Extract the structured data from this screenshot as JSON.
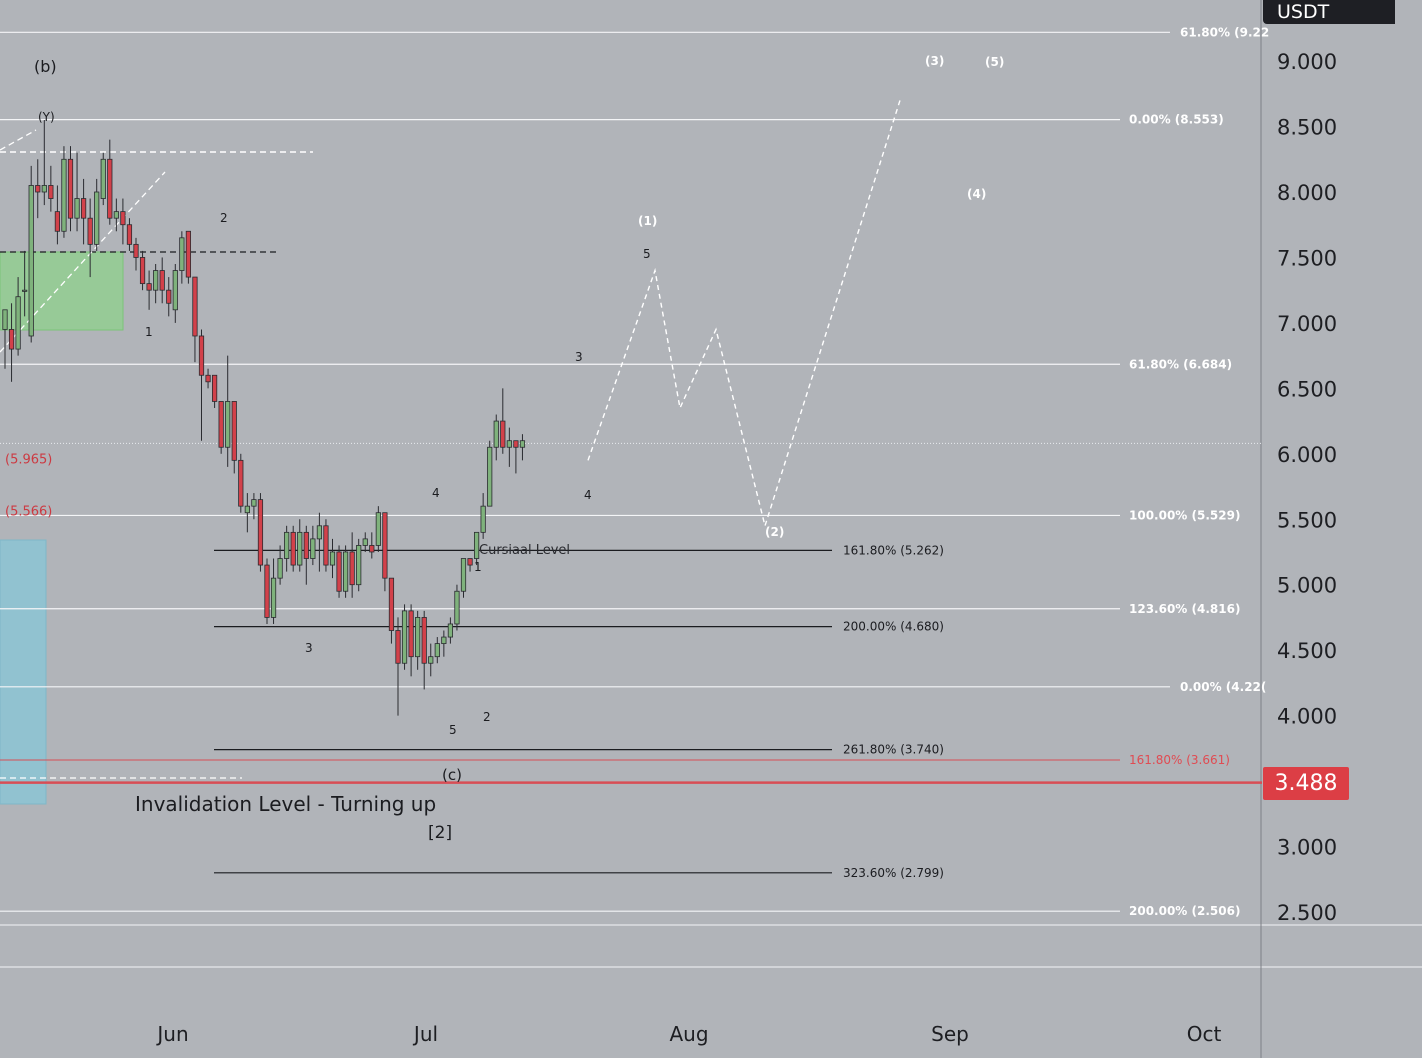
{
  "chart_data": {
    "type": "candlestick",
    "quote_currency": "USDT",
    "current_price": "3.488",
    "y_axis": {
      "ticks": [
        "9.000",
        "8.500",
        "8.000",
        "7.500",
        "7.000",
        "6.500",
        "6.000",
        "5.500",
        "5.000",
        "4.500",
        "4.000",
        "3.500",
        "3.000",
        "2.500"
      ],
      "range": [
        2.0,
        9.4
      ]
    },
    "x_axis": {
      "ticks": [
        "Jun",
        "Jul",
        "Aug",
        "Sep",
        "Oct"
      ]
    },
    "candles": [
      {
        "o": 6.95,
        "h": 7.1,
        "l": 6.65,
        "c": 7.1
      },
      {
        "o": 6.95,
        "h": 7.15,
        "l": 6.55,
        "c": 6.8
      },
      {
        "o": 6.8,
        "h": 7.35,
        "l": 6.75,
        "c": 7.2
      },
      {
        "o": 7.25,
        "h": 7.55,
        "l": 7.05,
        "c": 7.25
      },
      {
        "o": 6.9,
        "h": 8.2,
        "l": 6.85,
        "c": 8.05
      },
      {
        "o": 8.05,
        "h": 8.25,
        "l": 7.8,
        "c": 8.0
      },
      {
        "o": 8.0,
        "h": 8.55,
        "l": 7.9,
        "c": 8.05
      },
      {
        "o": 8.05,
        "h": 8.2,
        "l": 7.85,
        "c": 7.95
      },
      {
        "o": 7.85,
        "h": 8.05,
        "l": 7.6,
        "c": 7.7
      },
      {
        "o": 7.7,
        "h": 8.35,
        "l": 7.65,
        "c": 8.25
      },
      {
        "o": 8.25,
        "h": 8.35,
        "l": 7.7,
        "c": 7.8
      },
      {
        "o": 7.8,
        "h": 8.3,
        "l": 7.7,
        "c": 7.95
      },
      {
        "o": 7.95,
        "h": 8.1,
        "l": 7.6,
        "c": 7.8
      },
      {
        "o": 7.8,
        "h": 7.95,
        "l": 7.35,
        "c": 7.6
      },
      {
        "o": 7.6,
        "h": 8.1,
        "l": 7.55,
        "c": 8.0
      },
      {
        "o": 7.95,
        "h": 8.3,
        "l": 7.9,
        "c": 8.25
      },
      {
        "o": 8.25,
        "h": 8.4,
        "l": 7.75,
        "c": 7.8
      },
      {
        "o": 7.8,
        "h": 7.95,
        "l": 7.7,
        "c": 7.85
      },
      {
        "o": 7.85,
        "h": 7.95,
        "l": 7.6,
        "c": 7.75
      },
      {
        "o": 7.75,
        "h": 7.8,
        "l": 7.55,
        "c": 7.6
      },
      {
        "o": 7.6,
        "h": 7.65,
        "l": 7.4,
        "c": 7.5
      },
      {
        "o": 7.5,
        "h": 7.55,
        "l": 7.25,
        "c": 7.3
      },
      {
        "o": 7.3,
        "h": 7.4,
        "l": 7.1,
        "c": 7.25
      },
      {
        "o": 7.25,
        "h": 7.45,
        "l": 7.15,
        "c": 7.4
      },
      {
        "o": 7.4,
        "h": 7.5,
        "l": 7.15,
        "c": 7.25
      },
      {
        "o": 7.25,
        "h": 7.35,
        "l": 7.05,
        "c": 7.15
      },
      {
        "o": 7.1,
        "h": 7.45,
        "l": 7.0,
        "c": 7.4
      },
      {
        "o": 7.4,
        "h": 7.7,
        "l": 7.3,
        "c": 7.65
      },
      {
        "o": 7.7,
        "h": 7.7,
        "l": 7.3,
        "c": 7.35
      },
      {
        "o": 7.35,
        "h": 7.35,
        "l": 6.7,
        "c": 6.9
      },
      {
        "o": 6.9,
        "h": 6.95,
        "l": 6.1,
        "c": 6.6
      },
      {
        "o": 6.6,
        "h": 6.65,
        "l": 6.5,
        "c": 6.55
      },
      {
        "o": 6.6,
        "h": 6.6,
        "l": 6.35,
        "c": 6.4
      },
      {
        "o": 6.4,
        "h": 6.4,
        "l": 6.0,
        "c": 6.05
      },
      {
        "o": 6.05,
        "h": 6.75,
        "l": 5.9,
        "c": 6.4
      },
      {
        "o": 6.4,
        "h": 6.4,
        "l": 5.85,
        "c": 5.95
      },
      {
        "o": 5.95,
        "h": 6.0,
        "l": 5.55,
        "c": 5.6
      },
      {
        "o": 5.55,
        "h": 5.7,
        "l": 5.4,
        "c": 5.6
      },
      {
        "o": 5.6,
        "h": 5.7,
        "l": 5.5,
        "c": 5.65
      },
      {
        "o": 5.65,
        "h": 5.7,
        "l": 5.1,
        "c": 5.15
      },
      {
        "o": 5.15,
        "h": 5.2,
        "l": 4.7,
        "c": 4.75
      },
      {
        "o": 4.75,
        "h": 5.2,
        "l": 4.7,
        "c": 5.05
      },
      {
        "o": 5.05,
        "h": 5.3,
        "l": 5.0,
        "c": 5.2
      },
      {
        "o": 5.2,
        "h": 5.45,
        "l": 5.1,
        "c": 5.4
      },
      {
        "o": 5.4,
        "h": 5.45,
        "l": 5.1,
        "c": 5.15
      },
      {
        "o": 5.15,
        "h": 5.5,
        "l": 5.1,
        "c": 5.4
      },
      {
        "o": 5.4,
        "h": 5.45,
        "l": 5.0,
        "c": 5.2
      },
      {
        "o": 5.2,
        "h": 5.45,
        "l": 5.15,
        "c": 5.35
      },
      {
        "o": 5.35,
        "h": 5.55,
        "l": 5.1,
        "c": 5.45
      },
      {
        "o": 5.45,
        "h": 5.5,
        "l": 5.1,
        "c": 5.15
      },
      {
        "o": 5.15,
        "h": 5.35,
        "l": 5.05,
        "c": 5.25
      },
      {
        "o": 5.25,
        "h": 5.3,
        "l": 4.9,
        "c": 4.95
      },
      {
        "o": 4.95,
        "h": 5.3,
        "l": 4.9,
        "c": 5.25
      },
      {
        "o": 5.25,
        "h": 5.4,
        "l": 4.9,
        "c": 5.0
      },
      {
        "o": 5.0,
        "h": 5.35,
        "l": 4.95,
        "c": 5.3
      },
      {
        "o": 5.3,
        "h": 5.4,
        "l": 5.25,
        "c": 5.35
      },
      {
        "o": 5.3,
        "h": 5.4,
        "l": 5.2,
        "c": 5.25
      },
      {
        "o": 5.3,
        "h": 5.6,
        "l": 5.25,
        "c": 5.55
      },
      {
        "o": 5.55,
        "h": 5.55,
        "l": 4.95,
        "c": 5.05
      },
      {
        "o": 5.05,
        "h": 5.05,
        "l": 4.55,
        "c": 4.65
      },
      {
        "o": 4.65,
        "h": 4.75,
        "l": 4.0,
        "c": 4.4
      },
      {
        "o": 4.4,
        "h": 4.85,
        "l": 4.35,
        "c": 4.8
      },
      {
        "o": 4.8,
        "h": 4.85,
        "l": 4.3,
        "c": 4.45
      },
      {
        "o": 4.45,
        "h": 4.8,
        "l": 4.35,
        "c": 4.75
      },
      {
        "o": 4.75,
        "h": 4.8,
        "l": 4.2,
        "c": 4.4
      },
      {
        "o": 4.4,
        "h": 4.55,
        "l": 4.3,
        "c": 4.45
      },
      {
        "o": 4.45,
        "h": 4.6,
        "l": 4.4,
        "c": 4.55
      },
      {
        "o": 4.55,
        "h": 4.65,
        "l": 4.45,
        "c": 4.6
      },
      {
        "o": 4.6,
        "h": 4.75,
        "l": 4.55,
        "c": 4.7
      },
      {
        "o": 4.7,
        "h": 5.0,
        "l": 4.65,
        "c": 4.95
      },
      {
        "o": 4.95,
        "h": 5.2,
        "l": 4.9,
        "c": 5.2
      },
      {
        "o": 5.2,
        "h": 5.15,
        "l": 5.1,
        "c": 5.15
      },
      {
        "o": 5.2,
        "h": 5.4,
        "l": 5.15,
        "c": 5.4
      },
      {
        "o": 5.4,
        "h": 5.7,
        "l": 5.35,
        "c": 5.6
      },
      {
        "o": 5.6,
        "h": 6.1,
        "l": 5.6,
        "c": 6.05
      },
      {
        "o": 6.05,
        "h": 6.3,
        "l": 5.95,
        "c": 6.25
      },
      {
        "o": 6.25,
        "h": 6.5,
        "l": 6.0,
        "c": 6.05
      },
      {
        "o": 6.05,
        "h": 6.2,
        "l": 5.9,
        "c": 6.1
      },
      {
        "o": 6.1,
        "h": 6.1,
        "l": 5.85,
        "c": 6.05
      },
      {
        "o": 6.05,
        "h": 6.15,
        "l": 5.95,
        "c": 6.1
      }
    ],
    "horizontal_levels": [
      {
        "label": "61.80% (9.22",
        "price": 9.22,
        "style": "white-solid"
      },
      {
        "label": "0.00% (8.553)",
        "price": 8.553,
        "style": "white-solid"
      },
      {
        "label": "61.80% (6.684)",
        "price": 6.684,
        "style": "white-solid"
      },
      {
        "label": "100.00% (5.529)",
        "price": 5.529,
        "style": "white-solid"
      },
      {
        "label": "123.60% (4.816)",
        "price": 4.816,
        "style": "white-solid"
      },
      {
        "label": "0.00% (4.22(",
        "price": 4.22,
        "style": "white-solid"
      },
      {
        "label": "200.00% (2.506)",
        "price": 2.506,
        "style": "white-solid"
      },
      {
        "label": "161.80% (5.262)",
        "price": 5.262,
        "style": "black-solid"
      },
      {
        "label": "200.00% (4.680)",
        "price": 4.68,
        "style": "black-solid"
      },
      {
        "label": "261.80% (3.740)",
        "price": 3.74,
        "style": "black-solid"
      },
      {
        "label": "323.60% (2.799)",
        "price": 2.799,
        "style": "black-solid"
      },
      {
        "label": "161.80% (3.661)",
        "price": 3.661,
        "style": "red-thin"
      },
      {
        "label": "3.488",
        "price": 3.488,
        "style": "red-thick"
      }
    ],
    "side_labels": [
      {
        "text": "(5.965)",
        "price": 5.965
      },
      {
        "text": "(5.566)",
        "price": 5.566
      }
    ],
    "dotted_current_line": 6.08,
    "projection_path_prices": [
      5.95,
      7.4,
      6.35,
      6.95,
      5.45,
      8.7
    ],
    "wave_labels": {
      "b": "(b)",
      "y": "(Y)",
      "c": "(c)",
      "n1a": "1",
      "n2a": "2",
      "n3a": "3",
      "n4a": "4",
      "n1b": "1",
      "n2b": "2",
      "n5a": "5",
      "n3b": "3",
      "n4b": "4",
      "p1": "(1)",
      "p5": "5",
      "p2": "(2)",
      "p3": "(3)",
      "p4": "(4)",
      "p5b": "(5)"
    },
    "annotations": {
      "cursiaal": "Cursiaal Level",
      "invalidation": "Invalidation Level - Turning up",
      "bracket2": "[2]"
    },
    "colors": {
      "background": "#b1b4b9",
      "bull": "#7fb27c",
      "bear": "#d2414a",
      "white_line": "#f4f5f7",
      "black_line": "#1b1c20",
      "red_line": "#d84e55",
      "green_box": "#8fd18c",
      "blue_box": "#8cc4d4"
    }
  }
}
